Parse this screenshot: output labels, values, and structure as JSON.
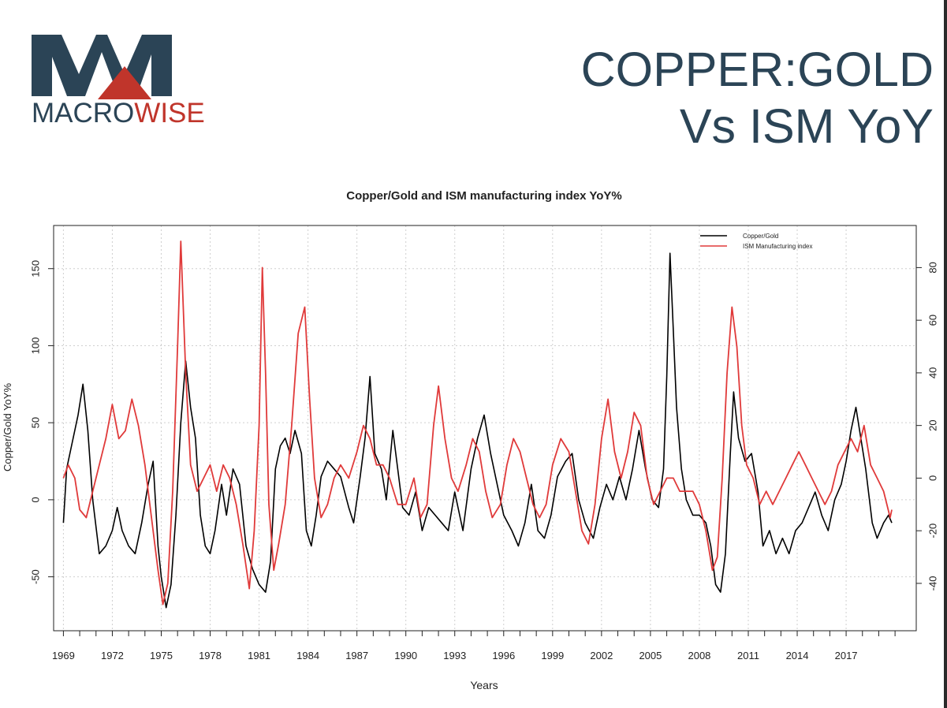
{
  "logo": {
    "mark": "MW",
    "word_left": "MACRO",
    "word_right": "WISE",
    "colors": {
      "navy": "#2b4456",
      "red": "#c0352b"
    }
  },
  "slide_title": {
    "line1": "COPPER:GOLD",
    "line2": "Vs ISM YoY"
  },
  "chart_data": {
    "type": "line",
    "title": "Copper/Gold and ISM manufacturing index YoY%",
    "xlabel": "Years",
    "ylabel": "Copper/Gold YoY%",
    "x_ticks": [
      "1969",
      "1972",
      "1975",
      "1978",
      "1981",
      "1984",
      "1987",
      "1990",
      "1993",
      "1996",
      "1999",
      "2002",
      "2005",
      "2008",
      "2011",
      "2014",
      "2017"
    ],
    "xlim": [
      1968.4,
      2021.3
    ],
    "ylim_left": [
      -85,
      178
    ],
    "ylim_right": [
      -58,
      96
    ],
    "left_ticks": [
      -50,
      0,
      50,
      100,
      150
    ],
    "right_ticks": [
      -40,
      -20,
      0,
      20,
      40,
      60,
      80
    ],
    "grid": true,
    "legend_position": "top-right",
    "series": [
      {
        "name": "Copper/Gold",
        "axis": "left",
        "color": "#000000",
        "points": [
          [
            1969.0,
            -15
          ],
          [
            1969.2,
            20
          ],
          [
            1969.5,
            35
          ],
          [
            1969.9,
            55
          ],
          [
            1970.2,
            75
          ],
          [
            1970.5,
            45
          ],
          [
            1970.8,
            0
          ],
          [
            1971.2,
            -35
          ],
          [
            1971.6,
            -30
          ],
          [
            1972.0,
            -20
          ],
          [
            1972.3,
            -5
          ],
          [
            1972.6,
            -20
          ],
          [
            1973.0,
            -30
          ],
          [
            1973.4,
            -35
          ],
          [
            1973.8,
            -15
          ],
          [
            1974.2,
            10
          ],
          [
            1974.5,
            25
          ],
          [
            1974.8,
            -30
          ],
          [
            1975.0,
            -50
          ],
          [
            1975.3,
            -70
          ],
          [
            1975.6,
            -55
          ],
          [
            1975.9,
            -10
          ],
          [
            1976.2,
            50
          ],
          [
            1976.5,
            90
          ],
          [
            1976.8,
            60
          ],
          [
            1977.1,
            40
          ],
          [
            1977.4,
            -10
          ],
          [
            1977.7,
            -30
          ],
          [
            1978.0,
            -35
          ],
          [
            1978.3,
            -20
          ],
          [
            1978.7,
            10
          ],
          [
            1979.0,
            -10
          ],
          [
            1979.4,
            20
          ],
          [
            1979.8,
            10
          ],
          [
            1980.2,
            -30
          ],
          [
            1980.6,
            -45
          ],
          [
            1981.0,
            -55
          ],
          [
            1981.4,
            -60
          ],
          [
            1981.7,
            -40
          ],
          [
            1982.0,
            20
          ],
          [
            1982.3,
            35
          ],
          [
            1982.6,
            40
          ],
          [
            1982.9,
            30
          ],
          [
            1983.2,
            45
          ],
          [
            1983.6,
            30
          ],
          [
            1983.9,
            -20
          ],
          [
            1984.2,
            -30
          ],
          [
            1984.5,
            -10
          ],
          [
            1984.8,
            15
          ],
          [
            1985.2,
            25
          ],
          [
            1985.6,
            20
          ],
          [
            1986.0,
            15
          ],
          [
            1986.5,
            -5
          ],
          [
            1986.8,
            -15
          ],
          [
            1987.2,
            15
          ],
          [
            1987.5,
            40
          ],
          [
            1987.8,
            80
          ],
          [
            1988.1,
            30
          ],
          [
            1988.5,
            20
          ],
          [
            1988.8,
            0
          ],
          [
            1989.2,
            45
          ],
          [
            1989.5,
            20
          ],
          [
            1989.8,
            -5
          ],
          [
            1990.2,
            -10
          ],
          [
            1990.6,
            5
          ],
          [
            1991.0,
            -20
          ],
          [
            1991.4,
            -5
          ],
          [
            1991.8,
            -10
          ],
          [
            1992.2,
            -15
          ],
          [
            1992.6,
            -20
          ],
          [
            1993.0,
            5
          ],
          [
            1993.5,
            -20
          ],
          [
            1994.0,
            20
          ],
          [
            1994.4,
            40
          ],
          [
            1994.8,
            55
          ],
          [
            1995.2,
            30
          ],
          [
            1995.6,
            10
          ],
          [
            1996.0,
            -10
          ],
          [
            1996.5,
            -20
          ],
          [
            1996.9,
            -30
          ],
          [
            1997.3,
            -15
          ],
          [
            1997.7,
            10
          ],
          [
            1998.1,
            -20
          ],
          [
            1998.5,
            -25
          ],
          [
            1998.9,
            -10
          ],
          [
            1999.3,
            15
          ],
          [
            1999.8,
            25
          ],
          [
            2000.2,
            30
          ],
          [
            2000.6,
            0
          ],
          [
            2001.0,
            -15
          ],
          [
            2001.5,
            -25
          ],
          [
            2001.9,
            -5
          ],
          [
            2002.3,
            10
          ],
          [
            2002.7,
            0
          ],
          [
            2003.1,
            15
          ],
          [
            2003.5,
            0
          ],
          [
            2003.9,
            20
          ],
          [
            2004.3,
            45
          ],
          [
            2004.7,
            20
          ],
          [
            2005.1,
            0
          ],
          [
            2005.5,
            -5
          ],
          [
            2005.8,
            20
          ],
          [
            2006.0,
            80
          ],
          [
            2006.2,
            160
          ],
          [
            2006.4,
            110
          ],
          [
            2006.6,
            60
          ],
          [
            2006.9,
            20
          ],
          [
            2007.2,
            0
          ],
          [
            2007.6,
            -10
          ],
          [
            2008.0,
            -10
          ],
          [
            2008.4,
            -15
          ],
          [
            2008.7,
            -30
          ],
          [
            2009.0,
            -55
          ],
          [
            2009.3,
            -60
          ],
          [
            2009.6,
            -35
          ],
          [
            2009.9,
            30
          ],
          [
            2010.1,
            70
          ],
          [
            2010.4,
            40
          ],
          [
            2010.8,
            25
          ],
          [
            2011.2,
            30
          ],
          [
            2011.6,
            5
          ],
          [
            2011.9,
            -30
          ],
          [
            2012.3,
            -20
          ],
          [
            2012.7,
            -35
          ],
          [
            2013.1,
            -25
          ],
          [
            2013.5,
            -35
          ],
          [
            2013.9,
            -20
          ],
          [
            2014.3,
            -15
          ],
          [
            2014.7,
            -5
          ],
          [
            2015.1,
            5
          ],
          [
            2015.5,
            -10
          ],
          [
            2015.9,
            -20
          ],
          [
            2016.3,
            0
          ],
          [
            2016.7,
            10
          ],
          [
            2017.0,
            25
          ],
          [
            2017.3,
            45
          ],
          [
            2017.6,
            60
          ],
          [
            2017.9,
            40
          ],
          [
            2018.2,
            20
          ],
          [
            2018.6,
            -15
          ],
          [
            2018.9,
            -25
          ],
          [
            2019.3,
            -15
          ],
          [
            2019.6,
            -10
          ],
          [
            2019.8,
            -15
          ]
        ]
      },
      {
        "name": "ISM Manufacturing index",
        "axis": "right",
        "color": "#e03a3a",
        "points": [
          [
            1969.0,
            0
          ],
          [
            1969.3,
            5
          ],
          [
            1969.7,
            0
          ],
          [
            1970.0,
            -12
          ],
          [
            1970.4,
            -15
          ],
          [
            1970.8,
            -5
          ],
          [
            1971.2,
            5
          ],
          [
            1971.6,
            15
          ],
          [
            1972.0,
            28
          ],
          [
            1972.4,
            15
          ],
          [
            1972.8,
            18
          ],
          [
            1973.2,
            30
          ],
          [
            1973.6,
            20
          ],
          [
            1974.0,
            5
          ],
          [
            1974.4,
            -15
          ],
          [
            1974.8,
            -35
          ],
          [
            1975.1,
            -48
          ],
          [
            1975.4,
            -40
          ],
          [
            1975.7,
            -5
          ],
          [
            1976.0,
            50
          ],
          [
            1976.2,
            90
          ],
          [
            1976.5,
            40
          ],
          [
            1976.8,
            5
          ],
          [
            1977.2,
            -5
          ],
          [
            1977.6,
            0
          ],
          [
            1978.0,
            5
          ],
          [
            1978.4,
            -5
          ],
          [
            1978.8,
            5
          ],
          [
            1979.2,
            0
          ],
          [
            1979.6,
            -10
          ],
          [
            1980.0,
            -25
          ],
          [
            1980.4,
            -42
          ],
          [
            1980.7,
            -20
          ],
          [
            1981.0,
            20
          ],
          [
            1981.2,
            80
          ],
          [
            1981.4,
            40
          ],
          [
            1981.6,
            -10
          ],
          [
            1981.9,
            -35
          ],
          [
            1982.2,
            -25
          ],
          [
            1982.6,
            -10
          ],
          [
            1983.0,
            20
          ],
          [
            1983.4,
            55
          ],
          [
            1983.8,
            65
          ],
          [
            1984.1,
            30
          ],
          [
            1984.4,
            0
          ],
          [
            1984.8,
            -15
          ],
          [
            1985.2,
            -10
          ],
          [
            1985.6,
            0
          ],
          [
            1986.0,
            5
          ],
          [
            1986.5,
            0
          ],
          [
            1987.0,
            10
          ],
          [
            1987.4,
            20
          ],
          [
            1987.8,
            15
          ],
          [
            1988.2,
            5
          ],
          [
            1988.6,
            5
          ],
          [
            1989.0,
            0
          ],
          [
            1989.5,
            -10
          ],
          [
            1990.0,
            -10
          ],
          [
            1990.5,
            0
          ],
          [
            1990.9,
            -15
          ],
          [
            1991.3,
            -10
          ],
          [
            1991.7,
            20
          ],
          [
            1992.0,
            35
          ],
          [
            1992.4,
            15
          ],
          [
            1992.8,
            0
          ],
          [
            1993.2,
            -5
          ],
          [
            1993.7,
            5
          ],
          [
            1994.1,
            15
          ],
          [
            1994.5,
            10
          ],
          [
            1994.9,
            -5
          ],
          [
            1995.3,
            -15
          ],
          [
            1995.8,
            -10
          ],
          [
            1996.2,
            5
          ],
          [
            1996.6,
            15
          ],
          [
            1997.0,
            10
          ],
          [
            1997.4,
            0
          ],
          [
            1997.8,
            -10
          ],
          [
            1998.2,
            -15
          ],
          [
            1998.6,
            -10
          ],
          [
            1999.0,
            5
          ],
          [
            1999.5,
            15
          ],
          [
            2000.0,
            10
          ],
          [
            2000.4,
            -5
          ],
          [
            2000.8,
            -20
          ],
          [
            2001.2,
            -25
          ],
          [
            2001.6,
            -10
          ],
          [
            2002.0,
            15
          ],
          [
            2002.4,
            30
          ],
          [
            2002.8,
            10
          ],
          [
            2003.2,
            0
          ],
          [
            2003.6,
            10
          ],
          [
            2004.0,
            25
          ],
          [
            2004.4,
            20
          ],
          [
            2004.8,
            0
          ],
          [
            2005.2,
            -10
          ],
          [
            2005.6,
            -5
          ],
          [
            2006.0,
            0
          ],
          [
            2006.4,
            0
          ],
          [
            2006.8,
            -5
          ],
          [
            2007.2,
            -5
          ],
          [
            2007.6,
            -5
          ],
          [
            2008.0,
            -10
          ],
          [
            2008.4,
            -20
          ],
          [
            2008.8,
            -35
          ],
          [
            2009.1,
            -30
          ],
          [
            2009.4,
            0
          ],
          [
            2009.7,
            40
          ],
          [
            2010.0,
            65
          ],
          [
            2010.3,
            50
          ],
          [
            2010.6,
            20
          ],
          [
            2010.9,
            5
          ],
          [
            2011.3,
            0
          ],
          [
            2011.7,
            -10
          ],
          [
            2012.1,
            -5
          ],
          [
            2012.5,
            -10
          ],
          [
            2012.9,
            -5
          ],
          [
            2013.3,
            0
          ],
          [
            2013.7,
            5
          ],
          [
            2014.1,
            10
          ],
          [
            2014.5,
            5
          ],
          [
            2014.9,
            0
          ],
          [
            2015.3,
            -5
          ],
          [
            2015.7,
            -10
          ],
          [
            2016.1,
            -5
          ],
          [
            2016.5,
            5
          ],
          [
            2016.9,
            10
          ],
          [
            2017.3,
            15
          ],
          [
            2017.7,
            10
          ],
          [
            2018.1,
            20
          ],
          [
            2018.5,
            5
          ],
          [
            2018.9,
            0
          ],
          [
            2019.3,
            -5
          ],
          [
            2019.7,
            -15
          ],
          [
            2019.8,
            -12
          ]
        ]
      }
    ]
  }
}
